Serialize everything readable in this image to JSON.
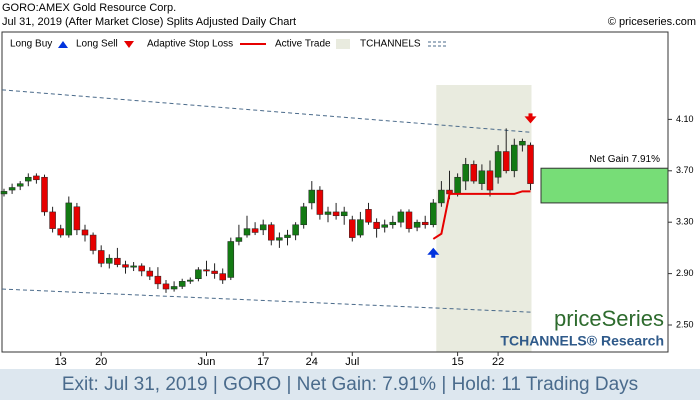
{
  "chart_data": {
    "type": "candlestick",
    "title": "GORO:AMEX Gold Resource Corp.",
    "subtitle": "Jul 31, 2019 (After Market Close)  Splits Adjusted Daily Chart",
    "copyright": "© priceseries.com",
    "legend": [
      "Long Buy",
      "Long Sell",
      "Adaptive Stop Loss",
      "Active Trade",
      "TCHANNELS"
    ],
    "watermark": "priceSeries",
    "watermark_sub": "TCHANNELS® Research",
    "footer": "Exit: Jul 31, 2019 | GORO | Net Gain: 7.91% | Hold: 11 Trading Days",
    "net_gain_label": "Net Gain 7.91%",
    "categories": [
      null,
      null,
      null,
      null,
      null,
      null,
      null,
      "13",
      null,
      null,
      null,
      null,
      "20",
      null,
      null,
      null,
      null,
      null,
      null,
      null,
      null,
      null,
      null,
      null,
      null,
      "Jun",
      null,
      null,
      null,
      null,
      null,
      null,
      "17",
      null,
      null,
      null,
      null,
      null,
      "24",
      null,
      null,
      null,
      null,
      "Jul",
      null,
      null,
      null,
      null,
      null,
      null,
      null,
      null,
      null,
      null,
      null,
      null,
      "15",
      null,
      null,
      null,
      null,
      "22",
      null,
      null,
      null,
      null
    ],
    "open": [
      3.52,
      3.55,
      3.58,
      3.62,
      3.66,
      3.65,
      3.38,
      3.25,
      3.2,
      3.42,
      3.24,
      3.2,
      3.08,
      2.98,
      3.02,
      2.97,
      2.95,
      2.96,
      2.92,
      2.88,
      2.82,
      2.78,
      2.8,
      2.84,
      2.86,
      2.93,
      2.92,
      2.9,
      2.87,
      3.15,
      3.2,
      3.25,
      3.24,
      3.28,
      3.16,
      3.18,
      3.2,
      3.28,
      3.45,
      3.55,
      3.36,
      3.38,
      3.35,
      3.32,
      3.2,
      3.4,
      3.3,
      3.26,
      3.28,
      3.3,
      3.38,
      3.26,
      3.3,
      3.28,
      3.45,
      3.55,
      3.52,
      3.62,
      3.75,
      3.6,
      3.7,
      3.65,
      3.85,
      3.7,
      3.9,
      3.9
    ],
    "high": [
      3.56,
      3.6,
      3.62,
      3.68,
      3.68,
      3.67,
      3.42,
      3.28,
      3.5,
      3.45,
      3.28,
      3.22,
      3.12,
      3.05,
      3.1,
      3.0,
      2.99,
      2.98,
      2.95,
      2.95,
      2.85,
      2.84,
      2.86,
      2.87,
      2.95,
      3.0,
      2.98,
      2.94,
      3.18,
      3.28,
      3.35,
      3.3,
      3.32,
      3.3,
      3.22,
      3.24,
      3.3,
      3.45,
      3.62,
      3.58,
      3.42,
      3.45,
      3.42,
      3.35,
      3.38,
      3.45,
      3.33,
      3.32,
      3.35,
      3.4,
      3.4,
      3.32,
      3.35,
      3.48,
      3.62,
      3.7,
      3.68,
      3.8,
      3.78,
      3.75,
      3.78,
      3.9,
      4.03,
      3.95,
      3.95,
      3.92
    ],
    "low": [
      3.5,
      3.52,
      3.55,
      3.58,
      3.6,
      3.35,
      3.22,
      3.18,
      3.18,
      3.2,
      3.15,
      3.05,
      2.95,
      2.94,
      2.95,
      2.9,
      2.92,
      2.88,
      2.85,
      2.78,
      2.75,
      2.76,
      2.78,
      2.82,
      2.84,
      2.88,
      2.86,
      2.82,
      2.85,
      3.12,
      3.18,
      3.2,
      3.2,
      3.12,
      3.1,
      3.12,
      3.16,
      3.25,
      3.4,
      3.32,
      3.3,
      3.32,
      3.28,
      3.15,
      3.18,
      3.28,
      3.18,
      3.22,
      3.25,
      3.26,
      3.22,
      3.23,
      3.25,
      3.26,
      3.42,
      3.48,
      3.5,
      3.55,
      3.6,
      3.55,
      3.5,
      3.6,
      3.68,
      3.65,
      3.85,
      3.55
    ],
    "close": [
      3.54,
      3.57,
      3.6,
      3.65,
      3.63,
      3.38,
      3.25,
      3.2,
      3.45,
      3.24,
      3.2,
      3.08,
      2.98,
      3.02,
      2.97,
      2.95,
      2.96,
      2.92,
      2.88,
      2.82,
      2.78,
      2.8,
      2.84,
      2.85,
      2.93,
      2.92,
      2.9,
      2.85,
      3.15,
      3.18,
      3.25,
      3.22,
      3.28,
      3.16,
      3.18,
      3.2,
      3.28,
      3.42,
      3.55,
      3.36,
      3.38,
      3.35,
      3.38,
      3.18,
      3.32,
      3.3,
      3.25,
      3.28,
      3.3,
      3.38,
      3.25,
      3.3,
      3.28,
      3.45,
      3.55,
      3.52,
      3.65,
      3.75,
      3.62,
      3.7,
      3.55,
      3.85,
      3.7,
      3.9,
      3.93,
      3.6
    ],
    "stop_loss": [
      null,
      null,
      null,
      null,
      null,
      null,
      null,
      null,
      null,
      null,
      null,
      null,
      null,
      null,
      null,
      null,
      null,
      null,
      null,
      null,
      null,
      null,
      null,
      null,
      null,
      null,
      null,
      null,
      null,
      null,
      null,
      null,
      null,
      null,
      null,
      null,
      null,
      null,
      null,
      null,
      null,
      null,
      null,
      null,
      null,
      null,
      null,
      null,
      null,
      null,
      null,
      null,
      null,
      3.17,
      3.21,
      3.52,
      3.52,
      3.52,
      3.52,
      3.52,
      3.52,
      3.52,
      3.52,
      3.52,
      3.54,
      3.54
    ],
    "long_buy": {
      "index": 53,
      "value": 3.07
    },
    "long_sell": {
      "index": 65,
      "value": 4.1
    },
    "tchannel_upper": [
      4.33,
      4.0
    ],
    "tchannel_lower": [
      2.78,
      2.6
    ],
    "gain_box": [
      3.45,
      3.72
    ],
    "up_color": "#137a13",
    "down_color": "#e60000",
    "stop_color": "#e60000",
    "ylim": [
      2.29,
      4.78
    ],
    "yticks": [
      {
        "value": 2.5,
        "label": "2.50"
      },
      {
        "value": 2.9,
        "label": "2.90"
      },
      {
        "value": 3.3,
        "label": "3.30"
      },
      {
        "value": 3.7,
        "label": "3.70"
      },
      {
        "value": 4.1,
        "label": "4.10"
      }
    ]
  }
}
